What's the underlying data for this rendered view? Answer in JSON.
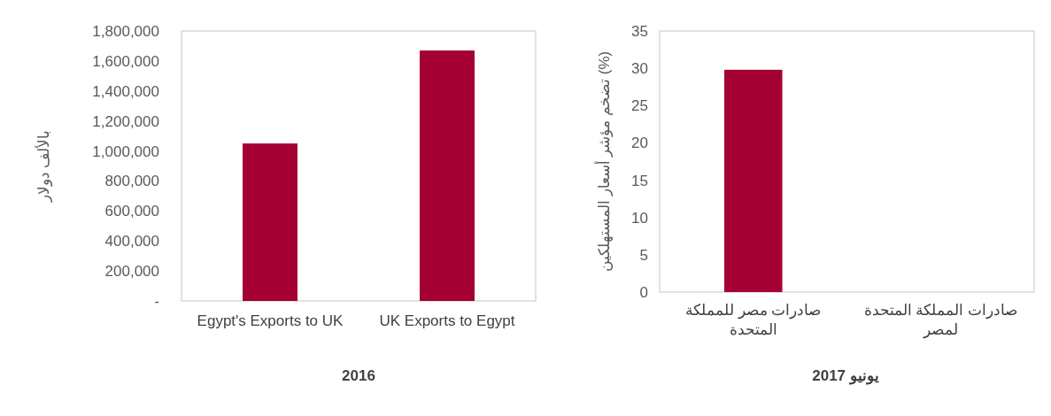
{
  "chart_data": [
    {
      "type": "bar",
      "xlabel": "2016",
      "ylabel": "بالألف دولار",
      "categories": [
        "Egypt's Exports to UK",
        "UK Exports to Egypt"
      ],
      "values": [
        1050000,
        1670000
      ],
      "color": "#a50034",
      "ylim": [
        0,
        1800000
      ],
      "yticks": [
        {
          "value": 0,
          "label": "-"
        },
        {
          "value": 200000,
          "label": "200,000"
        },
        {
          "value": 400000,
          "label": "400,000"
        },
        {
          "value": 600000,
          "label": "600,000"
        },
        {
          "value": 800000,
          "label": "800,000"
        },
        {
          "value": 1000000,
          "label": "1,000,000"
        },
        {
          "value": 1200000,
          "label": "1,200,000"
        },
        {
          "value": 1400000,
          "label": "1,400,000"
        },
        {
          "value": 1600000,
          "label": "1,600,000"
        },
        {
          "value": 1800000,
          "label": "1,800,000"
        }
      ],
      "grid": false
    },
    {
      "type": "bar",
      "xlabel": "يونيو 2017",
      "ylabel": "تضخم مؤشر أسعار المستهلكين (%)",
      "categories": [
        "صادرات مصر للمملكة المتحدة",
        "صادرات المملكة المتحدة لمصر"
      ],
      "values": [
        29.8,
        null
      ],
      "color": "#a50034",
      "ylim": [
        0,
        35
      ],
      "yticks": [
        0,
        5,
        10,
        15,
        20,
        25,
        30,
        35
      ],
      "grid": false
    }
  ]
}
